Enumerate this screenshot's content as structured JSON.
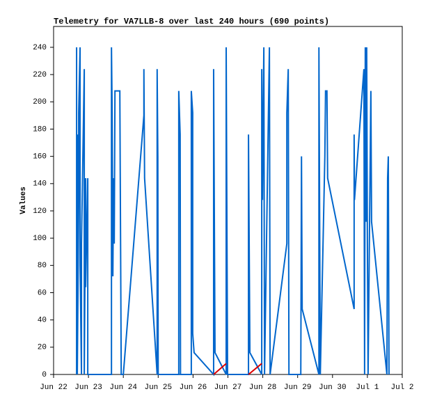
{
  "chart_data": {
    "type": "line",
    "title": "Telemetry for VA7LLB-8 over last 240 hours (690 points)",
    "y_label": "Values",
    "xlim": [
      22,
      32
    ],
    "xticks": [
      {
        "value": 22,
        "label": "Jun 22"
      },
      {
        "value": 23,
        "label": "Jun 23"
      },
      {
        "value": 24,
        "label": "Jun 24"
      },
      {
        "value": 25,
        "label": "Jun 25"
      },
      {
        "value": 26,
        "label": "Jun 26"
      },
      {
        "value": 27,
        "label": "Jun 27"
      },
      {
        "value": 28,
        "label": "Jun 28"
      },
      {
        "value": 29,
        "label": "Jun 29"
      },
      {
        "value": 30,
        "label": "Jun 30"
      },
      {
        "value": 31,
        "label": "Jul 1"
      },
      {
        "value": 32,
        "label": "Jul 2"
      }
    ],
    "ylim": [
      0,
      255.3
    ],
    "yticks": [
      0,
      20,
      40,
      60,
      80,
      100,
      120,
      140,
      160,
      180,
      200,
      220,
      240
    ],
    "grid": false,
    "series": [
      {
        "color": "#0066cc",
        "x": [
          22.66,
          22.66,
          22.66,
          22.68,
          22.68,
          22.72,
          22.72,
          22.76,
          22.76,
          22.8,
          22.8,
          22.88,
          22.88,
          22.92,
          22.92,
          22.98,
          22.98,
          23.66,
          23.66,
          23.68,
          23.7,
          23.72,
          23.74,
          23.76,
          23.9,
          23.92,
          23.94,
          24.0,
          24.59,
          24.59,
          24.61,
          24.97,
          24.97,
          24.99,
          25.0,
          25.59,
          25.59,
          25.63,
          25.64,
          25.95,
          25.95,
          25.99,
          25.99,
          26.03,
          26.59,
          26.59,
          26.63,
          26.95,
          26.95,
          26.99,
          27.59,
          27.59,
          27.63,
          27.97,
          27.97,
          27.99,
          28.03,
          28.05,
          28.19,
          28.21,
          28.69,
          28.69,
          28.73,
          28.75,
          29.09,
          29.11,
          29.13,
          29.61,
          29.61,
          29.65,
          29.78,
          29.8,
          29.84,
          29.86,
          30.62,
          30.62,
          30.63,
          30.9,
          30.92,
          30.94,
          30.96,
          30.98,
          31.0,
          31.02,
          31.1,
          31.12,
          31.56,
          31.58,
          31.6,
          31.62
        ],
        "values": [
          0,
          240,
          0,
          176,
          0,
          128,
          192,
          240,
          80,
          0,
          96,
          224,
          0,
          144,
          64,
          144,
          0,
          0,
          240,
          192,
          72,
          144,
          96,
          208,
          208,
          104,
          0,
          0,
          190,
          224,
          144,
          0,
          224,
          160,
          0,
          0,
          208,
          176,
          0,
          0,
          208,
          192,
          30,
          16,
          0,
          224,
          16,
          0,
          240,
          0,
          0,
          176,
          16,
          0,
          224,
          128,
          240,
          0,
          240,
          0,
          96,
          192,
          224,
          0,
          0,
          160,
          48,
          0,
          240,
          0,
          160,
          208,
          208,
          144,
          48,
          176,
          128,
          224,
          0,
          240,
          112,
          240,
          96,
          0,
          208,
          112,
          0,
          144,
          160,
          0
        ]
      },
      {
        "color": "#dd0000",
        "x": [
          26.59,
          26.95,
          null,
          27.59,
          27.97
        ],
        "values": [
          0,
          8,
          null,
          0,
          8
        ]
      }
    ]
  }
}
